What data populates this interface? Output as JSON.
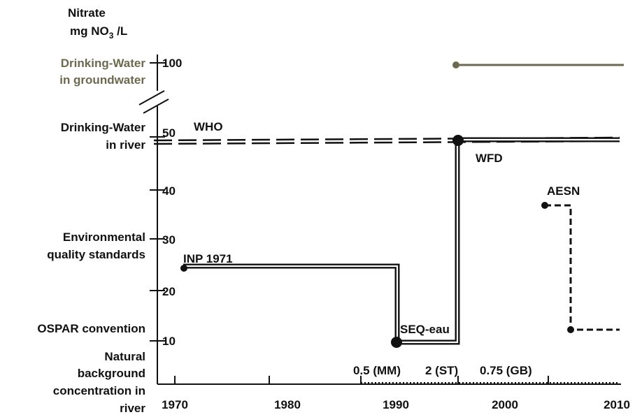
{
  "colors": {
    "ink": "#111111",
    "groundwater": "#6b6a4f"
  },
  "chart_data": {
    "type": "line",
    "y_axis_label_line1": "Nitrate",
    "y_axis_label_line2_prefix": "mg NO",
    "y_axis_label_line2_sub": "3",
    "y_axis_label_line2_suffix": " /L",
    "x_ticks": [
      "1970",
      "1980",
      "1990",
      "2000",
      "2010"
    ],
    "y_ticks": [
      "10",
      "20",
      "30",
      "40",
      "50",
      "100"
    ],
    "xlim": [
      1970,
      2010
    ],
    "category_labels": [
      {
        "lines": [
          "Drinking-Water",
          "in groundwater"
        ],
        "color": "#6b6a4f"
      },
      {
        "lines": [
          "Drinking-Water",
          "in river"
        ],
        "color": "#111111"
      },
      {
        "lines": [
          "Environmental",
          "quality standards"
        ],
        "color": "#111111"
      },
      {
        "lines": [
          "OSPAR convention"
        ],
        "color": "#111111"
      },
      {
        "lines": [
          "Natural",
          "background",
          "concentration in",
          "river"
        ],
        "color": "#111111"
      }
    ],
    "series": [
      {
        "name": "Drinking-Water in groundwater",
        "style": "solid",
        "color": "#6b6a4f",
        "points": [
          [
            1995.5,
            100
          ],
          [
            2010,
            100
          ]
        ]
      },
      {
        "name": "WHO",
        "style": "dashed-double",
        "points": [
          [
            1970,
            49.5
          ],
          [
            2010,
            49.5
          ]
        ]
      },
      {
        "name": "INP 1971",
        "style": "double-step",
        "points": [
          [
            1971,
            24
          ],
          [
            1990,
            24
          ],
          [
            1990,
            10
          ],
          [
            1995.5,
            10
          ],
          [
            1995.5,
            50
          ],
          [
            2010,
            50
          ]
        ]
      },
      {
        "name": "AESN",
        "style": "dashed-step",
        "points": [
          [
            2003.5,
            37
          ],
          [
            2004.5,
            37
          ],
          [
            2004.5,
            12
          ],
          [
            2010,
            12
          ]
        ]
      }
    ],
    "annotations": [
      {
        "text": "WHO"
      },
      {
        "text": "WFD"
      },
      {
        "text": "AESN"
      },
      {
        "text": "INP 1971"
      },
      {
        "text": "SEQ-eau"
      }
    ],
    "natural_background": {
      "style": "dotted",
      "x_range": [
        1987,
        2010
      ],
      "values": [
        "0.5 (MM)",
        "2 (ST)",
        "0.75 (GB)"
      ]
    }
  }
}
